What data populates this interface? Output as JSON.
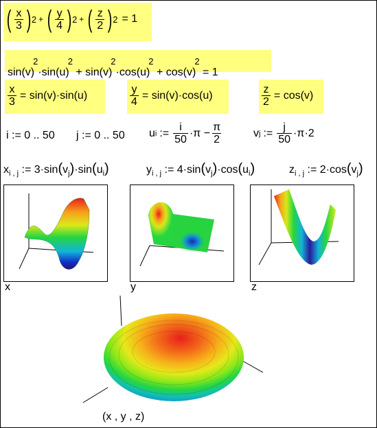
{
  "eq1": {
    "x": "x",
    "n3": "3",
    "y": "y",
    "n4": "4",
    "z": "z",
    "n2": "2",
    "exp": "2",
    "plus": "+",
    "rhs": "= 1"
  },
  "eq2": {
    "text_a": "sin(v)",
    "text_b": "·sin(u)",
    "text_c": "+ sin(v)",
    "text_d": "·cos(u)",
    "text_e": "+ cos(v)",
    "exp": "2",
    "rhs": "= 1"
  },
  "eq3": {
    "x_num": "x",
    "x_den": "3",
    "x_rhs": "= sin(v)·sin(u)",
    "y_num": "y",
    "y_den": "4",
    "y_rhs": "= sin(v)·cos(u)",
    "z_num": "z",
    "z_den": "2",
    "z_rhs": "= cos(v)"
  },
  "ranges": {
    "i_def": "i := 0 .. 50",
    "j_def": "j := 0 .. 50",
    "u_lhs": "u",
    "u_sub": "i",
    "u_assign": ":=",
    "u_num": "i",
    "u_den": "50",
    "u_mid": "·π −",
    "u_pi_num": "π",
    "u_pi_den": "2",
    "v_lhs": "v",
    "v_sub": "j",
    "v_assign": ":=",
    "v_num": "j",
    "v_den": "50",
    "v_tail": "·π·2"
  },
  "defs": {
    "x_lhs": "x",
    "x_sub": "i , j",
    "x_rhs_a": ":= 3·sin",
    "x_v": "v",
    "x_vsub": "j",
    "x_mid": "·sin",
    "x_u": "u",
    "x_usub": "i",
    "y_lhs": "y",
    "y_sub": "i , j",
    "y_rhs_a": ":= 4·sin",
    "y_v": "v",
    "y_vsub": "j",
    "y_mid": "·cos",
    "y_u": "u",
    "y_usub": "i",
    "z_lhs": "z",
    "z_sub": "i , j",
    "z_rhs_a": ":= 2·cos",
    "z_v": "v",
    "z_vsub": "j"
  },
  "plots": {
    "x_label": "x",
    "y_label": "y",
    "z_label": "z",
    "surface_label": "(x , y , z)"
  }
}
